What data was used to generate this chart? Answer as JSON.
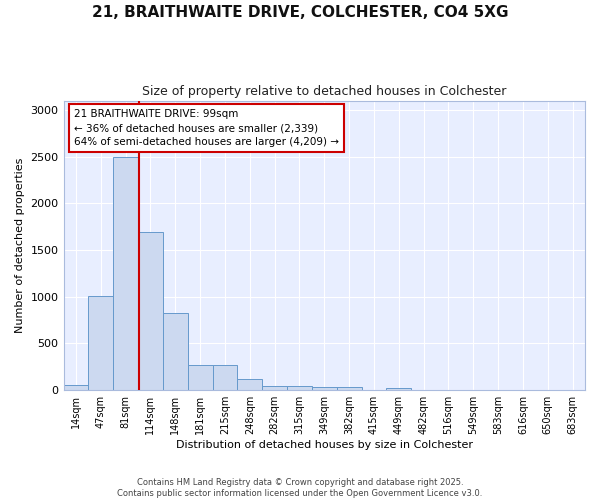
{
  "title_line1": "21, BRAITHWAITE DRIVE, COLCHESTER, CO4 5XG",
  "title_line2": "Size of property relative to detached houses in Colchester",
  "xlabel": "Distribution of detached houses by size in Colchester",
  "ylabel": "Number of detached properties",
  "categories": [
    "14sqm",
    "47sqm",
    "81sqm",
    "114sqm",
    "148sqm",
    "181sqm",
    "215sqm",
    "248sqm",
    "282sqm",
    "315sqm",
    "349sqm",
    "382sqm",
    "415sqm",
    "449sqm",
    "482sqm",
    "516sqm",
    "549sqm",
    "583sqm",
    "616sqm",
    "650sqm",
    "683sqm"
  ],
  "values": [
    55,
    1010,
    2500,
    1690,
    830,
    265,
    265,
    120,
    50,
    45,
    30,
    30,
    0,
    20,
    0,
    0,
    0,
    0,
    0,
    0,
    0
  ],
  "bar_color": "#ccd9f0",
  "bar_edge_color": "#6699cc",
  "annotation_text": "21 BRAITHWAITE DRIVE: 99sqm\n← 36% of detached houses are smaller (2,339)\n64% of semi-detached houses are larger (4,209) →",
  "annotation_box_facecolor": "#ffffff",
  "annotation_box_edgecolor": "#cc0000",
  "vline_color": "#cc0000",
  "ylim": [
    0,
    3100
  ],
  "yticks": [
    0,
    500,
    1000,
    1500,
    2000,
    2500,
    3000
  ],
  "background_color": "#e8eeff",
  "grid_color": "#ffffff",
  "fig_facecolor": "#ffffff",
  "footer_line1": "Contains HM Land Registry data © Crown copyright and database right 2025.",
  "footer_line2": "Contains public sector information licensed under the Open Government Licence v3.0."
}
